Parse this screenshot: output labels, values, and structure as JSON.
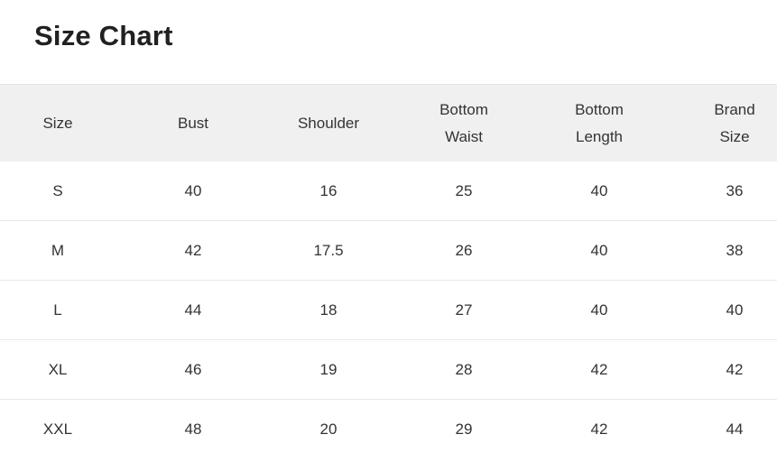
{
  "page": {
    "title": "Size Chart"
  },
  "colors": {
    "page_bg": "#ffffff",
    "title_text": "#212121",
    "text_primary": "#333333",
    "header_bg": "#f0f0f0",
    "header_top_border": "#e4e4e4",
    "row_divider": "#e9e9e9"
  },
  "table": {
    "columns": [
      {
        "key": "size",
        "label": "Size"
      },
      {
        "key": "bust",
        "label": "Bust"
      },
      {
        "key": "shoulder",
        "label": "Shoulder"
      },
      {
        "key": "bottom-waist",
        "label": "Bottom\nWaist"
      },
      {
        "key": "bottom-length",
        "label": "Bottom\nLength"
      },
      {
        "key": "brand-size",
        "label": "Brand\nSize"
      }
    ],
    "rows": [
      [
        "S",
        "40",
        "16",
        "25",
        "40",
        "36"
      ],
      [
        "M",
        "42",
        "17.5",
        "26",
        "40",
        "38"
      ],
      [
        "L",
        "44",
        "18",
        "27",
        "40",
        "40"
      ],
      [
        "XL",
        "46",
        "19",
        "28",
        "42",
        "42"
      ],
      [
        "XXL",
        "48",
        "20",
        "29",
        "42",
        "44"
      ]
    ]
  }
}
